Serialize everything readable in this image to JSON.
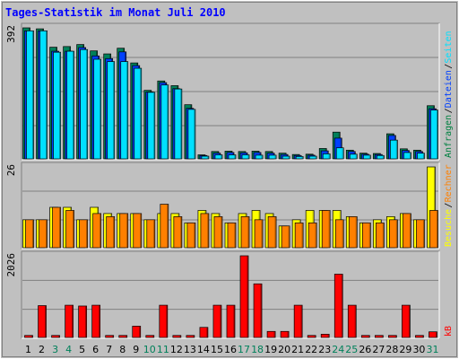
{
  "chart_data": [
    {
      "type": "bar",
      "title": "Tages-Statistik im Monat Juli 2010",
      "panel": "top",
      "y_max_label": "392",
      "ylim": [
        0,
        392
      ],
      "legend_right": [
        "Anfragen",
        "Dateien",
        "Seiten"
      ],
      "legend_colors": {
        "Anfragen": "#008040",
        "Dateien": "#0040ff",
        "Seiten": "#00e0ff"
      },
      "categories": [
        "1",
        "2",
        "3",
        "4",
        "5",
        "6",
        "7",
        "8",
        "9",
        "10",
        "11",
        "12",
        "13",
        "14",
        "15",
        "16",
        "17",
        "18",
        "19",
        "20",
        "21",
        "22",
        "23",
        "24",
        "25",
        "26",
        "27",
        "28",
        "29",
        "30",
        "31"
      ],
      "series": [
        {
          "name": "Anfragen",
          "values": [
            392,
            389,
            334,
            336,
            342,
            323,
            314,
            331,
            287,
            205,
            233,
            219,
            162,
            12,
            22,
            23,
            22,
            23,
            22,
            17,
            13,
            14,
            31,
            80,
            26,
            17,
            16,
            75,
            30,
            26,
            159
          ]
        },
        {
          "name": "Dateien",
          "values": [
            383,
            383,
            322,
            322,
            333,
            308,
            300,
            320,
            279,
            200,
            228,
            210,
            151,
            10,
            17,
            19,
            18,
            19,
            17,
            13,
            10,
            11,
            24,
            62,
            22,
            14,
            13,
            70,
            25,
            22,
            150
          ]
        },
        {
          "name": "Seiten",
          "values": [
            383,
            383,
            319,
            322,
            327,
            298,
            291,
            291,
            271,
            199,
            221,
            209,
            148,
            8,
            12,
            12,
            12,
            11,
            11,
            8,
            7,
            8,
            15,
            33,
            14,
            11,
            10,
            56,
            19,
            17,
            146
          ]
        }
      ]
    },
    {
      "type": "bar",
      "panel": "middle",
      "y_max_label": "26",
      "ylim": [
        0,
        26
      ],
      "legend_right": [
        "Besuche",
        "Rechner"
      ],
      "legend_colors": {
        "Besuche": "#ffff00",
        "Rechner": "#ff8000"
      },
      "categories": [
        "1",
        "2",
        "3",
        "4",
        "5",
        "6",
        "7",
        "8",
        "9",
        "10",
        "11",
        "12",
        "13",
        "14",
        "15",
        "16",
        "17",
        "18",
        "19",
        "20",
        "21",
        "22",
        "23",
        "24",
        "25",
        "26",
        "27",
        "28",
        "29",
        "30",
        "31"
      ],
      "series": [
        {
          "name": "Besuche",
          "values": [
            9,
            9,
            13,
            13,
            9,
            13,
            11,
            11,
            11,
            9,
            11,
            11,
            8,
            12,
            11,
            8,
            11,
            12,
            11,
            7,
            9,
            12,
            12,
            12,
            10,
            8,
            9,
            10,
            11,
            9,
            26
          ]
        },
        {
          "name": "Rechner",
          "values": [
            9,
            9,
            13,
            12,
            9,
            11,
            10,
            11,
            11,
            9,
            14,
            10,
            8,
            11,
            10,
            8,
            10,
            9,
            10,
            7,
            8,
            8,
            12,
            9,
            10,
            8,
            8,
            9,
            11,
            9,
            12
          ]
        }
      ]
    },
    {
      "type": "bar",
      "panel": "bottom",
      "y_max_label": "2026",
      "ylim": [
        0,
        2026
      ],
      "legend_right": [
        "kB"
      ],
      "legend_colors": {
        "kB": "#ff0000"
      },
      "categories": [
        "1",
        "2",
        "3",
        "4",
        "5",
        "6",
        "7",
        "8",
        "9",
        "10",
        "11",
        "12",
        "13",
        "14",
        "15",
        "16",
        "17",
        "18",
        "19",
        "20",
        "21",
        "22",
        "23",
        "24",
        "25",
        "26",
        "27",
        "28",
        "29",
        "30",
        "31"
      ],
      "series": [
        {
          "name": "kB",
          "values": [
            50,
            790,
            50,
            800,
            780,
            800,
            50,
            50,
            280,
            50,
            800,
            50,
            50,
            250,
            800,
            800,
            2026,
            1330,
            150,
            150,
            800,
            50,
            80,
            1570,
            800,
            50,
            50,
            50,
            800,
            50,
            140
          ]
        }
      ]
    }
  ],
  "x_day_labels": [
    "1",
    "2",
    "3",
    "4",
    "5",
    "6",
    "7",
    "8",
    "9",
    "10",
    "11",
    "12",
    "13",
    "14",
    "15",
    "16",
    "17",
    "18",
    "19",
    "20",
    "21",
    "22",
    "23",
    "24",
    "25",
    "26",
    "27",
    "28",
    "29",
    "30",
    "31"
  ],
  "weekend_days": [
    "3",
    "4",
    "10",
    "11",
    "17",
    "18",
    "24",
    "25",
    "31"
  ],
  "colors": {
    "background": "#c0c0c0",
    "title": "#0000ff",
    "weekday_label": "#000000",
    "weekend_label": "#00805a",
    "grid": "#808080"
  }
}
